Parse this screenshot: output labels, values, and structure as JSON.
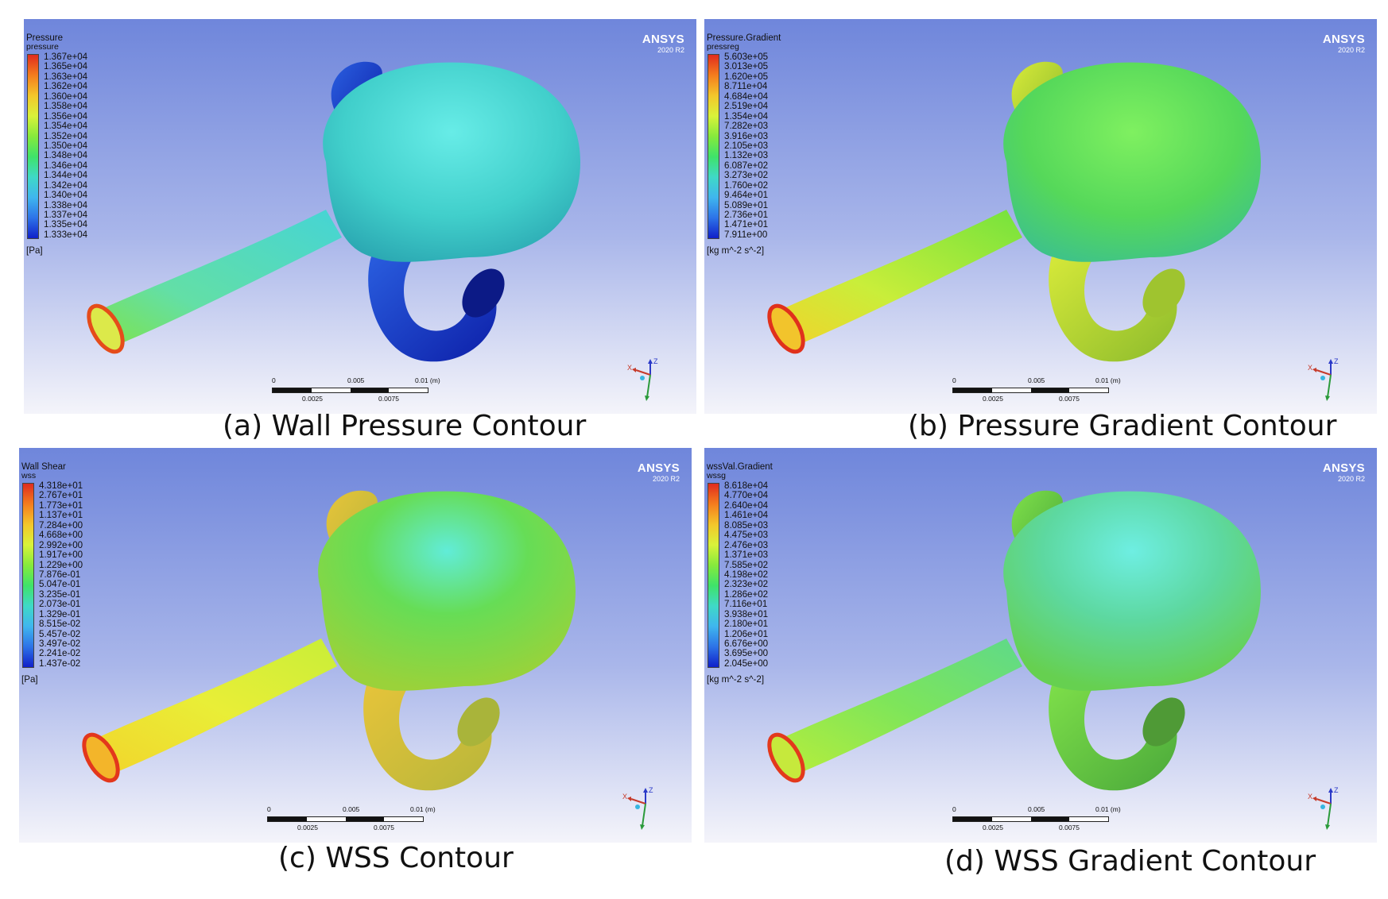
{
  "panels": [
    {
      "caption": "(a) Wall Pressure Contour",
      "legend_title": "Pressure",
      "legend_var": "pressure",
      "ticks": [
        "1.367e+04",
        "1.365e+04",
        "1.363e+04",
        "1.362e+04",
        "1.360e+04",
        "1.358e+04",
        "1.356e+04",
        "1.354e+04",
        "1.352e+04",
        "1.350e+04",
        "1.348e+04",
        "1.346e+04",
        "1.344e+04",
        "1.342e+04",
        "1.340e+04",
        "1.338e+04",
        "1.337e+04",
        "1.335e+04",
        "1.333e+04"
      ],
      "unit": "[Pa]"
    },
    {
      "caption": "(b) Pressure Gradient Contour",
      "legend_title": "Pressure.Gradient",
      "legend_var": "pressreg",
      "ticks": [
        "5.603e+05",
        "3.013e+05",
        "1.620e+05",
        "8.711e+04",
        "4.684e+04",
        "2.519e+04",
        "1.354e+04",
        "7.282e+03",
        "3.916e+03",
        "2.105e+03",
        "1.132e+03",
        "6.087e+02",
        "3.273e+02",
        "1.760e+02",
        "9.464e+01",
        "5.089e+01",
        "2.736e+01",
        "1.471e+01",
        "7.911e+00"
      ],
      "unit": "[kg m^-2 s^-2]"
    },
    {
      "caption": "(c) WSS Contour",
      "legend_title": "Wall Shear",
      "legend_var": "wss",
      "ticks": [
        "4.318e+01",
        "2.767e+01",
        "1.773e+01",
        "1.137e+01",
        "7.284e+00",
        "4.668e+00",
        "2.992e+00",
        "1.917e+00",
        "1.229e+00",
        "7.876e-01",
        "5.047e-01",
        "3.235e-01",
        "2.073e-01",
        "1.329e-01",
        "8.515e-02",
        "5.457e-02",
        "3.497e-02",
        "2.241e-02",
        "1.437e-02"
      ],
      "unit": "[Pa]"
    },
    {
      "caption": "(d) WSS Gradient Contour",
      "legend_title": "wssVal.Gradient",
      "legend_var": "wssg",
      "ticks": [
        "8.618e+04",
        "4.770e+04",
        "2.640e+04",
        "1.461e+04",
        "8.085e+03",
        "4.475e+03",
        "2.476e+03",
        "1.371e+03",
        "7.585e+02",
        "4.198e+02",
        "2.323e+02",
        "1.286e+02",
        "7.116e+01",
        "3.938e+01",
        "2.180e+01",
        "1.206e+01",
        "6.676e+00",
        "3.695e+00",
        "2.045e+00"
      ],
      "unit": "[kg m^-2 s^-2]"
    }
  ],
  "logo": {
    "name": "ANSYS",
    "version": "2020 R2"
  },
  "scale": {
    "top": [
      "0",
      "0.005",
      "0.01  (m)"
    ],
    "bottom": [
      "0.0025",
      "0.0075"
    ]
  },
  "triad": {
    "x": "X",
    "z": "Z"
  },
  "colors": {
    "bg_top": "#6f86db",
    "bg_bottom": "#f4f4fa",
    "cmap": [
      "#e02b1e",
      "#f47d1e",
      "#f3c62b",
      "#d9f23a",
      "#86ea3c",
      "#3fe36a",
      "#3fd9c7",
      "#3fb6ee",
      "#2d73e8",
      "#1020c9"
    ],
    "pressure_model": "#45d6cf",
    "pressure_low": "#1b3fd0"
  }
}
